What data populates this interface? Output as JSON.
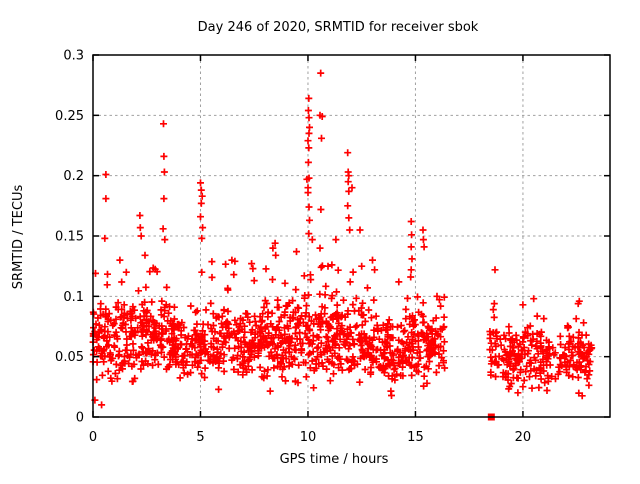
{
  "chart_data": {
    "type": "scatter",
    "title": "Day 246 of 2020, SRMTID for receiver sbok",
    "xlabel": "GPS time / hours",
    "ylabel": "SRMTID / TECUs",
    "xlim": [
      0,
      24.05
    ],
    "ylim": [
      0,
      0.3
    ],
    "xticks": {
      "values": [
        0,
        5,
        10,
        15,
        20
      ],
      "labels": [
        "0",
        "5",
        "10",
        "15",
        "20"
      ]
    },
    "yticks": {
      "values": [
        0,
        0.05,
        0.1,
        0.15,
        0.2,
        0.25,
        0.3
      ],
      "labels": [
        "0",
        "0.05",
        "0.1",
        "0.15",
        "0.2",
        "0.25",
        "0.3"
      ]
    },
    "grid": true,
    "legend_position": "none",
    "colors": {
      "points": "#ff0000",
      "axis": "#000000",
      "grid": "#a0a0a0",
      "background": "#ffffff"
    },
    "marker": {
      "shape": "plus",
      "size": 7,
      "stroke_width": 1.7
    },
    "square_marker_point": {
      "x": 18.53,
      "y": 0.0,
      "shape": "filled-square",
      "size": 7
    },
    "data_gap_hours": [
      16.4,
      18.45
    ],
    "data_end_hour": 23.2,
    "notable_points": [
      [
        0.09,
        0.014
      ],
      [
        0.17,
        0.031
      ],
      [
        0.4,
        0.01
      ],
      [
        0.55,
        0.148
      ],
      [
        0.6,
        0.201
      ],
      [
        0.6,
        0.181
      ],
      [
        1.25,
        0.13
      ],
      [
        1.55,
        0.12
      ],
      [
        2.18,
        0.167
      ],
      [
        2.2,
        0.157
      ],
      [
        2.24,
        0.15
      ],
      [
        2.42,
        0.134
      ],
      [
        3.28,
        0.243
      ],
      [
        3.3,
        0.216
      ],
      [
        3.32,
        0.203
      ],
      [
        3.3,
        0.181
      ],
      [
        3.26,
        0.156
      ],
      [
        3.34,
        0.147
      ],
      [
        5.0,
        0.194
      ],
      [
        5.04,
        0.188
      ],
      [
        5.08,
        0.183
      ],
      [
        5.04,
        0.177
      ],
      [
        5.0,
        0.166
      ],
      [
        5.1,
        0.157
      ],
      [
        5.06,
        0.148
      ],
      [
        6.46,
        0.13
      ],
      [
        6.6,
        0.129
      ],
      [
        6.55,
        0.118
      ],
      [
        7.44,
        0.123
      ],
      [
        7.5,
        0.113
      ],
      [
        8.37,
        0.14
      ],
      [
        8.47,
        0.144
      ],
      [
        8.5,
        0.134
      ],
      [
        9.95,
        0.197
      ],
      [
        10.0,
        0.19
      ],
      [
        10.04,
        0.264
      ],
      [
        10.02,
        0.254
      ],
      [
        10.05,
        0.248
      ],
      [
        10.07,
        0.24
      ],
      [
        10.05,
        0.235
      ],
      [
        10.0,
        0.229
      ],
      [
        10.04,
        0.223
      ],
      [
        10.02,
        0.211
      ],
      [
        10.05,
        0.198
      ],
      [
        10.0,
        0.186
      ],
      [
        10.05,
        0.174
      ],
      [
        10.07,
        0.163
      ],
      [
        10.04,
        0.152
      ],
      [
        10.2,
        0.147
      ],
      [
        10.59,
        0.285
      ],
      [
        10.56,
        0.25
      ],
      [
        10.66,
        0.249
      ],
      [
        10.63,
        0.231
      ],
      [
        10.6,
        0.172
      ],
      [
        10.56,
        0.14
      ],
      [
        10.93,
        0.125
      ],
      [
        11.3,
        0.147
      ],
      [
        11.85,
        0.219
      ],
      [
        11.87,
        0.203
      ],
      [
        11.9,
        0.2
      ],
      [
        11.87,
        0.195
      ],
      [
        11.9,
        0.187
      ],
      [
        11.85,
        0.175
      ],
      [
        11.9,
        0.165
      ],
      [
        11.94,
        0.155
      ],
      [
        12.05,
        0.19
      ],
      [
        12.42,
        0.155
      ],
      [
        12.5,
        0.125
      ],
      [
        13.0,
        0.13
      ],
      [
        13.1,
        0.122
      ],
      [
        14.8,
        0.162
      ],
      [
        14.82,
        0.151
      ],
      [
        14.8,
        0.141
      ],
      [
        14.84,
        0.131
      ],
      [
        14.8,
        0.122
      ],
      [
        14.78,
        0.116
      ],
      [
        15.35,
        0.155
      ],
      [
        15.37,
        0.147
      ],
      [
        15.4,
        0.141
      ],
      [
        16.0,
        0.1
      ],
      [
        18.7,
        0.122
      ],
      [
        18.67,
        0.094
      ],
      [
        18.62,
        0.089
      ],
      [
        20.0,
        0.093
      ],
      [
        20.5,
        0.098
      ],
      [
        22.57,
        0.094
      ],
      [
        22.62,
        0.096
      ]
    ],
    "band_distribution": {
      "seed": 7,
      "segments": [
        {
          "x0": 0.0,
          "x1": 1.0,
          "n": 70,
          "c": 0.06,
          "sp": 0.03,
          "tp": 0.93,
          "ta": 0.05,
          "lo": 0.012,
          "hi": 0.135
        },
        {
          "x0": 1.0,
          "x1": 2.0,
          "n": 70,
          "c": 0.062,
          "sp": 0.03,
          "tp": 0.94,
          "ta": 0.05,
          "lo": 0.015,
          "hi": 0.135
        },
        {
          "x0": 2.0,
          "x1": 3.6,
          "n": 115,
          "c": 0.068,
          "sp": 0.032,
          "tp": 0.92,
          "ta": 0.06,
          "lo": 0.018,
          "hi": 0.148
        },
        {
          "x0": 3.6,
          "x1": 5.5,
          "n": 130,
          "c": 0.06,
          "sp": 0.028,
          "tp": 0.95,
          "ta": 0.045,
          "lo": 0.015,
          "hi": 0.12
        },
        {
          "x0": 5.5,
          "x1": 9.0,
          "n": 250,
          "c": 0.064,
          "sp": 0.03,
          "tp": 0.92,
          "ta": 0.055,
          "lo": 0.018,
          "hi": 0.148
        },
        {
          "x0": 9.0,
          "x1": 12.6,
          "n": 260,
          "c": 0.066,
          "sp": 0.032,
          "tp": 0.9,
          "ta": 0.06,
          "lo": 0.018,
          "hi": 0.155
        },
        {
          "x0": 12.6,
          "x1": 14.4,
          "n": 120,
          "c": 0.055,
          "sp": 0.026,
          "tp": 0.96,
          "ta": 0.04,
          "lo": 0.015,
          "hi": 0.115
        },
        {
          "x0": 14.4,
          "x1": 16.37,
          "n": 140,
          "c": 0.06,
          "sp": 0.03,
          "tp": 0.93,
          "ta": 0.05,
          "lo": 0.015,
          "hi": 0.135
        },
        {
          "x0": 18.45,
          "x1": 23.2,
          "n": 270,
          "c": 0.05,
          "sp": 0.026,
          "tp": 0.97,
          "ta": 0.035,
          "lo": 0.014,
          "hi": 0.105
        }
      ]
    }
  }
}
